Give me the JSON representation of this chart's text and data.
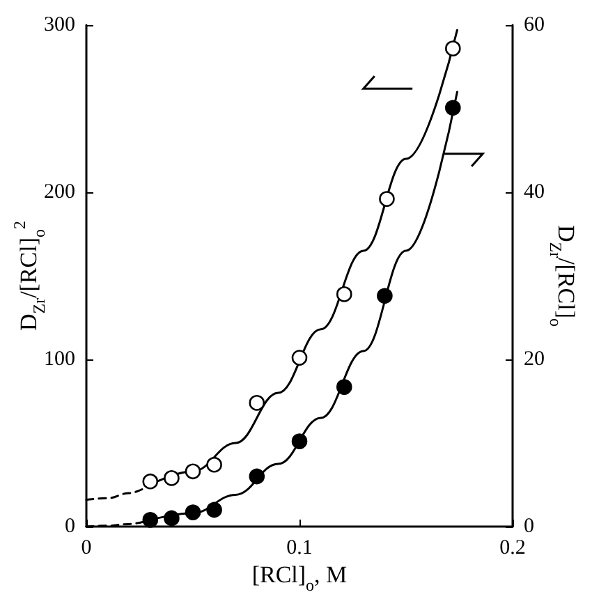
{
  "chart_data": {
    "type": "scatter",
    "xlabel": "[RCl]$_{o}$, M",
    "ylabel": "D$_{Zr}$/[RCl]$_{o}$$^{2}$",
    "y2label": "D$_{Zr}$/[RCl]$_{o}$",
    "xlim": [
      0,
      0.2
    ],
    "xticks": [
      0,
      0.1,
      0.2
    ],
    "ylim": [
      0,
      300
    ],
    "yticks": [
      0,
      100,
      200,
      300
    ],
    "y2lim": [
      0,
      60
    ],
    "y2ticks": [
      0,
      20,
      40,
      60
    ],
    "grid": false,
    "marker": "circle",
    "series": [
      {
        "type": "line",
        "color": "#000000",
        "marker": "none",
        "line_style": "dashed",
        "x": [
          0,
          0.01,
          0.02,
          0.03
        ],
        "values": [
          16,
          17,
          20,
          25
        ]
      },
      {
        "type": "line",
        "color": "#000000",
        "marker": "none",
        "line_style": "solid",
        "x": [
          0.03,
          0.05,
          0.07,
          0.09,
          0.11,
          0.13,
          0.15,
          0.174
        ],
        "values": [
          25,
          33,
          50,
          80,
          118,
          165,
          220,
          297
        ]
      },
      {
        "type": "line",
        "axis": "y2",
        "color": "#000000",
        "marker": "none",
        "line_style": "dashed",
        "x": [
          0,
          0.01,
          0.02,
          0.03
        ],
        "values": [
          0,
          0.1,
          0.3,
          0.8
        ]
      },
      {
        "type": "line",
        "axis": "y2",
        "color": "#000000",
        "marker": "none",
        "line_style": "solid",
        "x": [
          0.03,
          0.05,
          0.07,
          0.09,
          0.11,
          0.13,
          0.15,
          0.174
        ],
        "values": [
          0.8,
          1.6,
          3.8,
          7.5,
          13,
          21,
          33,
          52
        ]
      },
      {
        "color": "#ffffff",
        "x": [
          0.03,
          0.04,
          0.05,
          0.06,
          0.08,
          0.1,
          0.121,
          0.141,
          0.172
        ],
        "values": [
          27,
          29,
          33,
          37,
          74,
          101,
          139,
          196,
          286
        ]
      },
      {
        "axis": "y2",
        "color": "#000000",
        "x": [
          0.03,
          0.04,
          0.05,
          0.06,
          0.08,
          0.1,
          0.121,
          0.14,
          0.172
        ],
        "values": [
          0.8,
          1.0,
          1.7,
          2.0,
          6.0,
          10.2,
          16.7,
          27.6,
          50.1
        ]
      }
    ]
  }
}
